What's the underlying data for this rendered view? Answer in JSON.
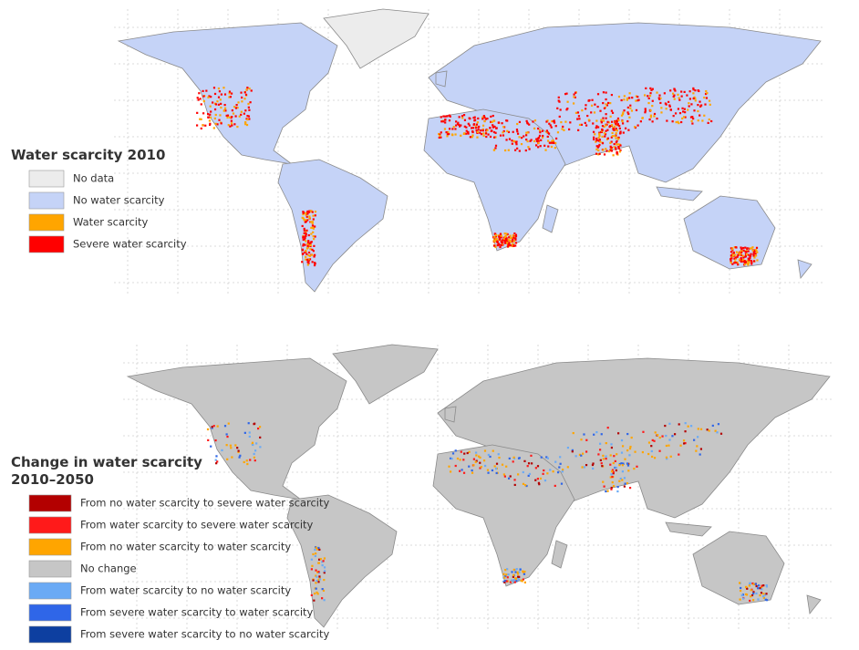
{
  "maps": [
    {
      "legend": {
        "title": "Water scarcity 2010",
        "items": [
          {
            "label": "No data",
            "color": "#ececec"
          },
          {
            "label": "No water scarcity",
            "color": "#c5d3f7"
          },
          {
            "label": "Water scarcity",
            "color": "#ffa500"
          },
          {
            "label": "Severe water scarcity",
            "color": "#ff0000"
          }
        ]
      }
    },
    {
      "legend": {
        "title": "Change in water scarcity",
        "subtitle": "2010–2050",
        "items": [
          {
            "label": "From no water scarcity to severe water scarcity",
            "color": "#b30000"
          },
          {
            "label": "From water scarcity to severe water scarcity",
            "color": "#ff1a1a"
          },
          {
            "label": "From no water scarcity to water scarcity",
            "color": "#ffa500"
          },
          {
            "label": "No change",
            "color": "#c6c6c6"
          },
          {
            "label": "From water scarcity to no water scarcity",
            "color": "#6aaaf5"
          },
          {
            "label": "From severe water scarcity to water scarcity",
            "color": "#2f66e8"
          },
          {
            "label": "From severe water scarcity to no water scarcity",
            "color": "#0d3fa0"
          }
        ]
      }
    }
  ]
}
